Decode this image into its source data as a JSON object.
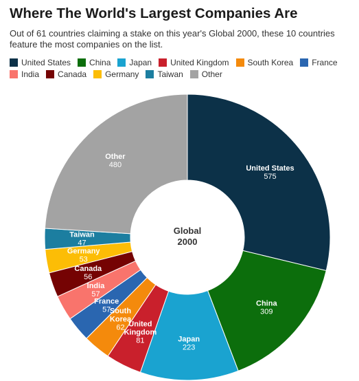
{
  "chart_data": {
    "type": "pie",
    "title": "Where The World's Largest Companies Are",
    "subtitle": "Out of 61 countries claiming a stake on this year's Global 2000, these 10 countries feature the most companies on the list.",
    "center_label": [
      "Global",
      "2000"
    ],
    "legend_placement": "top",
    "categories": [
      "United States",
      "China",
      "Japan",
      "United Kingdom",
      "South Korea",
      "France",
      "India",
      "Canada",
      "Germany",
      "Taiwan",
      "Other"
    ],
    "values": [
      575,
      309,
      223,
      81,
      62,
      57,
      57,
      56,
      53,
      47,
      480
    ],
    "slice_labels": [
      [
        "United States"
      ],
      [
        "China"
      ],
      [
        "Japan"
      ],
      [
        "United",
        "Kingdom"
      ],
      [
        "South",
        "Korea"
      ],
      [
        "France"
      ],
      [
        "India"
      ],
      [
        "Canada"
      ],
      [
        "Germany"
      ],
      [
        "Taiwan"
      ],
      [
        "Other"
      ]
    ],
    "value_labels": [
      "575",
      "309",
      "223",
      "81",
      "62",
      "57",
      "57",
      "56",
      "53",
      "47",
      "480"
    ],
    "colors": [
      "#0c3148",
      "#0c6e0c",
      "#1aa3d0",
      "#c9202c",
      "#f48a0c",
      "#2a66b0",
      "#f9746c",
      "#750303",
      "#fcbd06",
      "#1c7ea0",
      "#a3a3a3"
    ],
    "legend_rows": [
      [
        0,
        1,
        2,
        3,
        4,
        5
      ],
      [
        6,
        7,
        8,
        9,
        10
      ]
    ]
  }
}
